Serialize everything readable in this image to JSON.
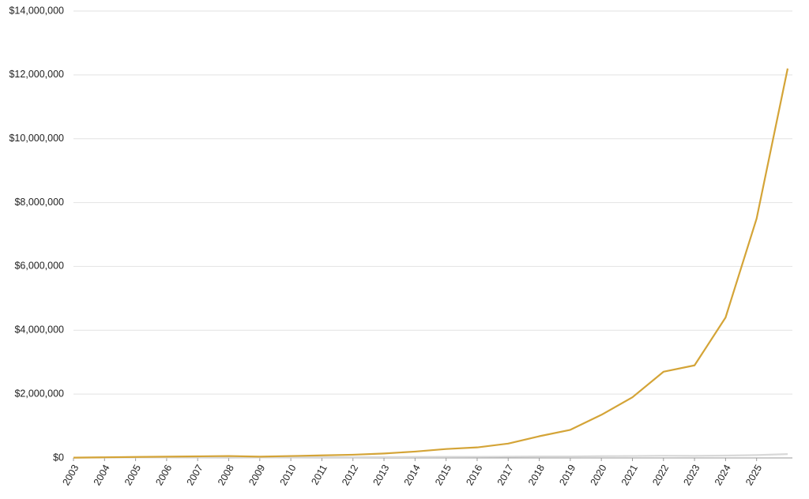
{
  "chart_data": {
    "type": "line",
    "x": [
      2003,
      2004,
      2005,
      2006,
      2007,
      2008,
      2009,
      2010,
      2011,
      2012,
      2013,
      2014,
      2015,
      2016,
      2017,
      2018,
      2019,
      2020,
      2021,
      2022,
      2023,
      2024,
      2025,
      2026
    ],
    "series": [
      {
        "color": "#d8d8d8",
        "values": [
          10000,
          12000,
          14000,
          16000,
          18000,
          20000,
          15000,
          18000,
          20000,
          22000,
          26000,
          30000,
          34000,
          36000,
          40000,
          46000,
          48000,
          55000,
          60000,
          70000,
          65000,
          75000,
          90000,
          120000
        ]
      },
      {
        "color": "#d4a437",
        "values": [
          10000,
          20000,
          30000,
          40000,
          50000,
          60000,
          40000,
          60000,
          80000,
          100000,
          140000,
          200000,
          280000,
          330000,
          450000,
          680000,
          880000,
          1350000,
          1900000,
          2700000,
          2900000,
          4400000,
          7500000,
          12200000
        ]
      }
    ],
    "xlim": [
      2003,
      2026
    ],
    "xticks": [
      2003,
      2004,
      2005,
      2006,
      2007,
      2008,
      2009,
      2010,
      2011,
      2012,
      2013,
      2014,
      2015,
      2016,
      2017,
      2018,
      2019,
      2020,
      2021,
      2022,
      2023,
      2024,
      2025
    ],
    "ylim": [
      0,
      14000000
    ],
    "yticks": [
      {
        "value": 0,
        "label": "$0"
      },
      {
        "value": 2000000,
        "label": "$2,000,000"
      },
      {
        "value": 4000000,
        "label": "$4,000,000"
      },
      {
        "value": 6000000,
        "label": "$6,000,000"
      },
      {
        "value": 8000000,
        "label": "$8,000,000"
      },
      {
        "value": 10000000,
        "label": "$10,000,000"
      },
      {
        "value": 12000000,
        "label": "$12,000,000"
      },
      {
        "value": 14000000,
        "label": "$14,000,000"
      }
    ],
    "grid": true
  }
}
